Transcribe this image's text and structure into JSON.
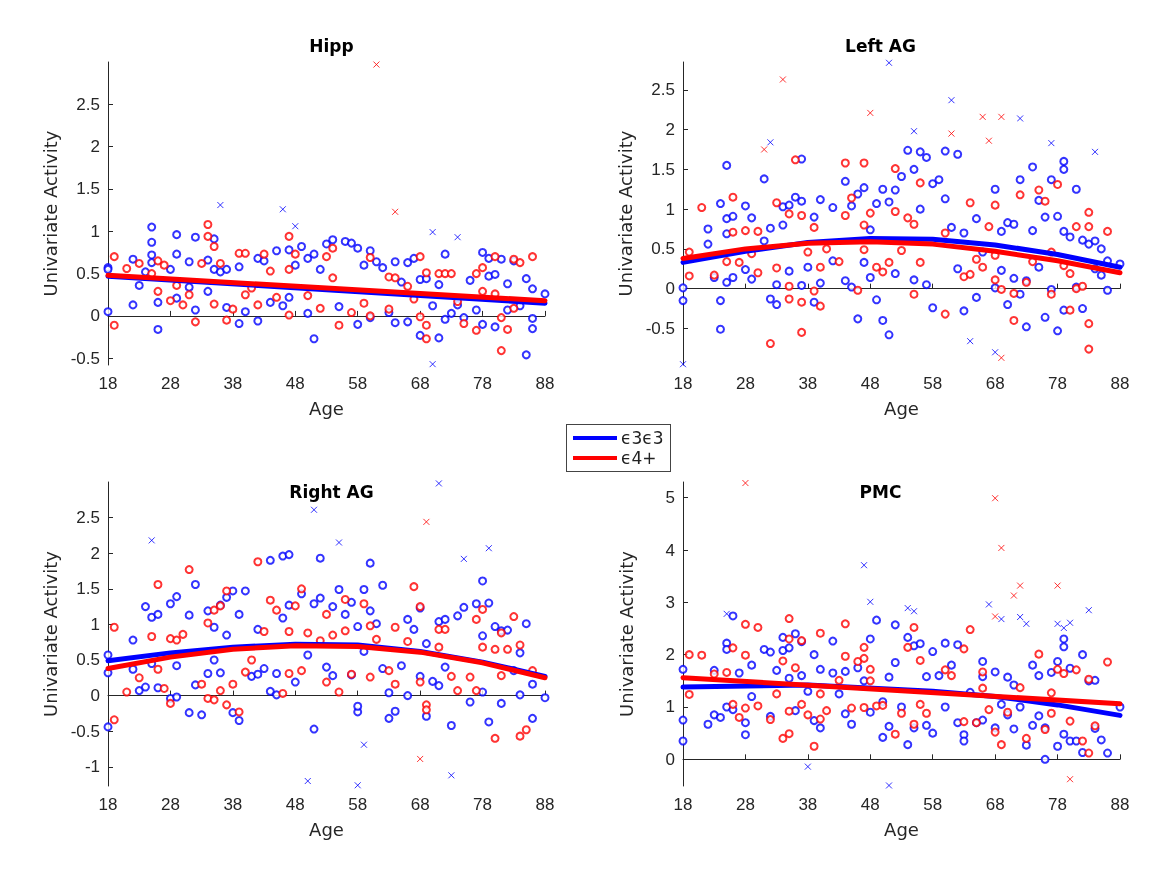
{
  "chart_data": [
    {
      "type": "scatter",
      "title": "Hipp",
      "xlabel": "Age",
      "ylabel": "Univariate Activity",
      "xlim": [
        18,
        88
      ],
      "xticks": [
        18,
        28,
        38,
        48,
        58,
        68,
        78,
        88
      ],
      "ylim": [
        -0.58,
        3.0
      ],
      "yticks": [
        -0.5,
        0,
        0.5,
        1,
        1.5,
        2,
        2.5
      ],
      "legend": "bottom right",
      "series": [
        {
          "type": "scatter",
          "marker": "circle",
          "color": "#0000ff",
          "x": [
            18,
            18,
            18,
            22,
            22,
            23,
            24,
            25,
            25,
            25,
            25,
            26,
            26,
            28,
            29,
            29,
            29,
            31,
            31,
            32,
            32,
            34,
            34,
            35,
            35,
            36,
            37,
            37,
            39,
            39,
            40,
            42,
            42,
            43,
            44,
            45,
            46,
            47,
            47,
            48,
            49,
            50,
            50,
            51,
            51,
            52,
            53,
            54,
            55,
            56,
            57,
            58,
            58,
            59,
            60,
            60,
            61,
            62,
            63,
            64,
            64,
            65,
            66,
            66,
            67,
            68,
            68,
            69,
            70,
            71,
            71,
            72,
            72,
            73,
            74,
            75,
            76,
            77,
            78,
            78,
            79,
            79,
            80,
            80,
            81,
            82,
            82,
            83,
            84,
            85,
            85,
            86,
            86,
            86,
            88
          ],
          "values": [
            0.57,
            0.55,
            0.05,
            0.67,
            0.13,
            0.36,
            0.52,
            1.05,
            0.87,
            0.72,
            0.63,
            -0.16,
            0.16,
            0.55,
            0.96,
            0.73,
            0.21,
            0.64,
            0.34,
            0.93,
            0.07,
            0.66,
            0.29,
            0.91,
            0.55,
            0.52,
            0.55,
            0.1,
            -0.09,
            0.58,
            0.05,
            0.68,
            -0.06,
            0.65,
            0.16,
            0.77,
            0.12,
            0.78,
            0.22,
            0.6,
            0.82,
            0.68,
            0.03,
            0.73,
            -0.27,
            0.55,
            0.85,
            0.9,
            0.11,
            0.88,
            0.86,
            0.8,
            -0.1,
            0.6,
            0.77,
            -0.02,
            0.64,
            0.57,
            0.04,
            0.64,
            -0.08,
            0.4,
            0.63,
            -0.07,
            0.68,
            -0.23,
            0.43,
            0.44,
            0.12,
            -0.26,
            0.37,
            0.73,
            -0.04,
            0.03,
            0.13,
            -0.02,
            0.42,
            0.07,
            0.75,
            -0.1,
            0.68,
            0.47,
            -0.13,
            0.49,
            0.67,
            0.38,
            0.07,
            0.65,
            0.12,
            0.44,
            -0.46,
            0.32,
            -0.15,
            -0.03,
            0.26
          ]
        },
        {
          "type": "scatter",
          "marker": "cross",
          "color": "#0000ff",
          "x": [
            36,
            46,
            48,
            70,
            74,
            70
          ],
          "values": [
            1.31,
            1.26,
            1.06,
            0.99,
            0.93,
            -0.57
          ]
        },
        {
          "type": "scatter",
          "marker": "circle",
          "color": "#ff0000",
          "x": [
            19,
            19,
            21,
            23,
            25,
            26,
            26,
            27,
            28,
            29,
            30,
            31,
            32,
            33,
            34,
            34,
            35,
            35,
            36,
            37,
            38,
            39,
            40,
            40,
            41,
            42,
            43,
            44,
            45,
            47,
            47,
            47,
            48,
            50,
            52,
            53,
            54,
            54,
            55,
            57,
            59,
            60,
            60,
            63,
            63,
            64,
            66,
            67,
            68,
            68,
            69,
            69,
            69,
            71,
            72,
            73,
            74,
            75,
            77,
            77,
            78,
            78,
            80,
            80,
            81,
            81,
            82,
            83,
            83,
            84,
            86
          ],
          "values": [
            0.7,
            -0.11,
            0.56,
            0.62,
            0.5,
            0.65,
            0.29,
            0.6,
            0.18,
            0.36,
            0.13,
            0.25,
            -0.07,
            0.62,
            1.08,
            0.94,
            0.82,
            0.14,
            0.62,
            -0.05,
            0.08,
            0.74,
            0.74,
            0.25,
            0.33,
            0.13,
            0.73,
            0.53,
            0.22,
            0.94,
            0.55,
            0.01,
            0.73,
            0.24,
            0.09,
            0.7,
            0.8,
            0.45,
            -0.11,
            0.04,
            0.15,
            0.69,
            0.0,
            0.46,
            0.08,
            0.45,
            0.35,
            0.2,
            0.7,
            -0.01,
            0.51,
            -0.27,
            -0.11,
            0.5,
            0.5,
            0.5,
            0.17,
            -0.09,
            0.5,
            -0.17,
            0.57,
            0.29,
            0.7,
            0.26,
            -0.41,
            -0.02,
            -0.16,
            0.67,
            0.09,
            0.63,
            0.7
          ]
        },
        {
          "type": "scatter",
          "marker": "cross",
          "color": "#ff0000",
          "x": [
            61,
            64
          ],
          "values": [
            2.97,
            1.23
          ]
        },
        {
          "type": "line",
          "name": "ϵ3ϵ3",
          "marker": "none",
          "line_style": "solid",
          "color": "#0000ff",
          "x": [
            18,
            53,
            88
          ],
          "values": [
            0.47,
            0.31,
            0.15
          ]
        },
        {
          "type": "line",
          "name": "ϵ4+",
          "marker": "none",
          "line_style": "solid",
          "color": "#ff0000",
          "x": [
            18,
            53,
            88
          ],
          "values": [
            0.48,
            0.33,
            0.18
          ]
        }
      ]
    },
    {
      "type": "scatter",
      "title": "Left AG",
      "xlabel": "Age",
      "ylabel": "Univariate Activity",
      "xlim": [
        18,
        88
      ],
      "xticks": [
        18,
        28,
        38,
        48,
        58,
        68,
        78,
        88
      ],
      "ylim": [
        -0.96,
        2.85
      ],
      "yticks": [
        -0.5,
        0,
        0.5,
        1,
        1.5,
        2,
        2.5
      ],
      "series": [
        {
          "type": "scatter",
          "marker": "circle",
          "color": "#0000ff",
          "x": [
            18,
            18,
            22,
            22,
            23,
            24,
            24,
            24,
            25,
            25,
            25,
            25,
            26,
            26,
            28,
            28,
            29,
            29,
            31,
            31,
            32,
            32,
            33,
            33,
            34,
            34,
            35,
            35,
            36,
            37,
            37,
            37,
            38,
            39,
            39,
            40,
            40,
            42,
            42,
            44,
            44,
            45,
            45,
            46,
            46,
            47,
            47,
            48,
            48,
            49,
            49,
            50,
            50,
            51,
            51,
            52,
            52,
            53,
            54,
            55,
            55,
            56,
            56,
            57,
            57,
            58,
            58,
            59,
            60,
            60,
            61,
            62,
            62,
            63,
            63,
            65,
            65,
            66,
            68,
            68,
            69,
            69,
            70,
            70,
            71,
            71,
            72,
            72,
            73,
            73,
            74,
            74,
            75,
            75,
            76,
            76,
            77,
            77,
            78,
            78,
            79,
            79,
            79,
            79,
            80,
            81,
            81,
            82,
            82,
            83,
            84,
            84,
            85,
            85,
            86,
            86,
            88
          ],
          "values": [
            0.01,
            -0.15,
            0.75,
            0.56,
            0.14,
            1.07,
            -0.15,
            -0.51,
            1.55,
            0.88,
            0.69,
            0.08,
            0.91,
            0.14,
            1.04,
            0.24,
            0.89,
            0.12,
            1.38,
            0.6,
            0.76,
            -0.13,
            0.05,
            -0.2,
            1.03,
            0.8,
            1.05,
            0.22,
            1.15,
            1.63,
            1.1,
            0.04,
            0.27,
            0.9,
            -0.17,
            1.12,
            0.07,
            1.02,
            0.35,
            1.35,
            0.1,
            1.04,
            0.02,
            1.19,
            -0.38,
            1.27,
            0.33,
            0.74,
            0.14,
            1.07,
            -0.14,
            1.25,
            -0.4,
            -0.58,
            1.09,
            1.24,
            0.19,
            1.41,
            1.74,
            1.5,
            0.11,
            1.72,
            1.0,
            1.65,
            0.05,
            1.32,
            -0.24,
            1.37,
            1.73,
            1.13,
            0.77,
            1.69,
            0.25,
            0.7,
            -0.28,
            0.88,
            -0.11,
            0.46,
            1.25,
            0.01,
            0.72,
            0.23,
            0.83,
            -0.2,
            0.81,
            0.13,
            1.37,
            -0.07,
            0.1,
            -0.48,
            1.53,
            0.73,
            1.11,
            0.27,
            0.9,
            -0.36,
            1.37,
            -0.01,
            0.91,
            -0.53,
            1.6,
            1.5,
            0.72,
            -0.27,
            0.65,
            1.25,
            0.02,
            0.61,
            -0.25,
            0.56,
            0.6,
            0.25,
            0.5,
            0.17,
            -0.02,
            0.35,
            0.31
          ]
        },
        {
          "type": "scatter",
          "marker": "cross",
          "color": "#0000ff",
          "x": [
            51,
            32,
            55,
            61,
            72,
            77,
            84,
            64,
            68,
            18
          ],
          "values": [
            2.84,
            1.84,
            1.98,
            2.37,
            2.14,
            1.83,
            1.72,
            -0.66,
            -0.8,
            -0.95
          ]
        },
        {
          "type": "scatter",
          "marker": "circle",
          "color": "#ff0000",
          "x": [
            19,
            19,
            21,
            23,
            25,
            26,
            26,
            27,
            28,
            29,
            30,
            30,
            32,
            33,
            33,
            35,
            35,
            35,
            36,
            37,
            37,
            37,
            38,
            39,
            39,
            40,
            40,
            41,
            43,
            44,
            44,
            45,
            46,
            47,
            47,
            47,
            48,
            49,
            50,
            51,
            52,
            52,
            53,
            54,
            55,
            55,
            56,
            56,
            60,
            60,
            63,
            64,
            64,
            65,
            66,
            67,
            68,
            68,
            68,
            69,
            71,
            71,
            72,
            73,
            74,
            75,
            76,
            77,
            77,
            78,
            79,
            80,
            80,
            81,
            81,
            82,
            83,
            83,
            83,
            83,
            86
          ],
          "values": [
            0.46,
            0.16,
            1.02,
            0.17,
            0.34,
            1.15,
            0.71,
            0.33,
            0.73,
            0.44,
            0.72,
            0.2,
            -0.69,
            1.08,
            0.26,
            0.94,
            0.03,
            -0.13,
            1.62,
            0.92,
            -0.55,
            -0.17,
            0.46,
            0.77,
            -0.03,
            0.27,
            -0.22,
            0.5,
            0.34,
            1.58,
            0.92,
            1.14,
            -0.02,
            1.58,
            0.49,
            0.8,
            0.95,
            0.27,
            0.21,
            0.33,
            1.51,
            0.97,
            0.48,
            0.89,
            0.81,
            -0.07,
            1.33,
            0.33,
            0.7,
            -0.32,
            0.15,
            1.08,
            0.18,
            0.37,
            0.27,
            0.78,
            1.05,
            0.42,
            0.11,
            -0.01,
            -0.06,
            -0.4,
            1.18,
            0.08,
            0.34,
            1.24,
            1.1,
            0.46,
            -0.07,
            1.31,
            0.29,
            0.19,
            -0.27,
            0.78,
            0.0,
            0.03,
            0.96,
            0.78,
            -0.44,
            -0.76,
            0.72
          ]
        },
        {
          "type": "scatter",
          "marker": "cross",
          "color": "#ff0000",
          "x": [
            34,
            31,
            48,
            61,
            66,
            69,
            67,
            69
          ],
          "values": [
            2.63,
            1.75,
            2.21,
            1.95,
            2.16,
            2.16,
            1.86,
            -0.87
          ]
        },
        {
          "type": "line",
          "marker": "none",
          "line_style": "solid",
          "color": "#0000ff",
          "x": [
            18,
            28,
            38,
            48,
            58,
            68,
            78,
            88
          ],
          "values": [
            0.33,
            0.47,
            0.58,
            0.63,
            0.62,
            0.55,
            0.43,
            0.27
          ]
        },
        {
          "type": "line",
          "marker": "none",
          "line_style": "solid",
          "color": "#ff0000",
          "x": [
            18,
            28,
            38,
            48,
            58,
            68,
            78,
            88
          ],
          "values": [
            0.38,
            0.5,
            0.57,
            0.59,
            0.56,
            0.47,
            0.35,
            0.2
          ]
        }
      ]
    },
    {
      "type": "scatter",
      "title": "Right AG",
      "xlabel": "Age",
      "ylabel": "Univariate Activity",
      "xlim": [
        18,
        88
      ],
      "xticks": [
        18,
        28,
        38,
        48,
        58,
        68,
        78,
        88
      ],
      "ylim": [
        -1.27,
        3.0
      ],
      "yticks": [
        -1,
        -0.5,
        0,
        0.5,
        1,
        1.5,
        2,
        2.5
      ],
      "series": [
        {
          "type": "scatter",
          "marker": "circle",
          "color": "#0000ff",
          "x": [
            18,
            18,
            18,
            22,
            22,
            23,
            24,
            24,
            25,
            25,
            26,
            26,
            28,
            28,
            29,
            29,
            29,
            31,
            31,
            32,
            32,
            33,
            34,
            34,
            35,
            35,
            36,
            36,
            37,
            37,
            38,
            38,
            39,
            39,
            40,
            41,
            42,
            42,
            43,
            44,
            44,
            45,
            45,
            46,
            46,
            47,
            47,
            48,
            49,
            50,
            51,
            51,
            52,
            52,
            53,
            54,
            54,
            55,
            56,
            57,
            57,
            58,
            58,
            58,
            59,
            59,
            60,
            60,
            61,
            62,
            62,
            63,
            63,
            64,
            65,
            66,
            66,
            67,
            68,
            68,
            69,
            69,
            70,
            71,
            71,
            72,
            72,
            73,
            74,
            75,
            76,
            77,
            78,
            78,
            78,
            79,
            79,
            80,
            81,
            81,
            82,
            83,
            84,
            84,
            85,
            86,
            86,
            88
          ],
          "values": [
            0.57,
            0.32,
            -0.44,
            0.78,
            0.37,
            0.07,
            1.25,
            0.12,
            1.1,
            0.45,
            1.14,
            0.11,
            1.29,
            -0.04,
            1.39,
            0.42,
            -0.02,
            1.13,
            -0.24,
            1.56,
            0.15,
            -0.27,
            1.19,
            0.31,
            0.96,
            0.5,
            1.27,
            0.32,
            1.38,
            0.85,
            1.47,
            -0.24,
            1.14,
            -0.35,
            1.47,
            0.27,
            0.93,
            0.3,
            0.38,
            1.9,
            0.06,
            0.31,
            0.01,
            1.96,
            1.09,
            1.98,
            1.27,
            0.19,
            1.43,
            0.57,
            1.29,
            -0.47,
            1.93,
            1.37,
            0.4,
            1.25,
            0.28,
            1.49,
            1.14,
            1.31,
            0.29,
            0.97,
            -0.23,
            -0.15,
            1.49,
            0.62,
            1.86,
            1.19,
            1.01,
            1.55,
            0.38,
            0.04,
            -0.32,
            -0.22,
            0.42,
            1.07,
            0.0,
            0.93,
            1.23,
            0.27,
            0.73,
            -0.29,
            0.2,
            1.04,
            0.14,
            1.07,
            0.4,
            -0.42,
            1.12,
            1.24,
            -0.09,
            1.29,
            1.61,
            0.84,
            0.05,
            1.3,
            -0.37,
            0.97,
            0.91,
            -0.11,
            0.92,
            0.35,
            0.6,
            0.01,
            1.01,
            0.16,
            -0.32,
            -0.03
          ]
        },
        {
          "type": "scatter",
          "marker": "cross",
          "color": "#0000ff",
          "x": [
            25,
            51,
            55,
            71,
            75,
            79,
            59,
            50,
            58,
            73
          ],
          "values": [
            2.18,
            2.61,
            2.15,
            2.98,
            1.92,
            2.07,
            -0.69,
            -1.2,
            -1.26,
            -1.12
          ]
        },
        {
          "type": "scatter",
          "marker": "circle",
          "color": "#ff0000",
          "x": [
            19,
            19,
            21,
            23,
            25,
            26,
            26,
            27,
            28,
            28,
            29,
            30,
            31,
            33,
            34,
            34,
            35,
            35,
            36,
            36,
            37,
            37,
            38,
            39,
            40,
            41,
            42,
            43,
            44,
            45,
            46,
            47,
            47,
            48,
            49,
            49,
            50,
            52,
            53,
            53,
            54,
            55,
            56,
            56,
            57,
            59,
            60,
            60,
            61,
            63,
            64,
            64,
            66,
            67,
            68,
            68,
            69,
            69,
            71,
            71,
            72,
            73,
            74,
            76,
            77,
            77,
            78,
            78,
            80,
            80,
            81,
            81,
            82,
            83,
            84,
            84,
            85,
            86
          ],
          "values": [
            0.96,
            -0.34,
            0.05,
            0.25,
            0.83,
            1.56,
            0.37,
            0.1,
            0.8,
            -0.11,
            0.78,
            0.86,
            1.77,
            0.16,
            1.02,
            -0.04,
            1.2,
            -0.06,
            1.26,
            0.07,
            1.47,
            -0.13,
            0.16,
            -0.23,
            0.33,
            0.5,
            1.88,
            0.9,
            1.34,
            1.2,
            0.03,
            0.9,
            0.31,
            1.26,
            1.5,
            0.35,
            0.88,
            0.77,
            1.14,
            0.19,
            0.85,
            0.05,
            1.35,
            0.91,
            0.3,
            1.29,
            0.98,
            0.26,
            0.79,
            0.35,
            0.96,
            0.16,
            0.76,
            1.53,
            1.25,
            0.19,
            -0.13,
            -0.2,
            0.93,
            0.68,
            0.93,
            0.27,
            0.07,
            0.26,
            1.07,
            0.07,
            1.21,
            0.68,
            0.65,
            -0.6,
            0.88,
            0.28,
            0.65,
            1.11,
            0.71,
            -0.57,
            -0.48,
            0.35
          ]
        },
        {
          "type": "scatter",
          "marker": "cross",
          "color": "#ff0000",
          "x": [
            69,
            68
          ],
          "values": [
            2.44,
            -0.89
          ]
        },
        {
          "type": "line",
          "marker": "none",
          "line_style": "solid",
          "color": "#0000ff",
          "x": [
            18,
            28,
            38,
            48,
            58,
            68,
            78,
            88
          ],
          "values": [
            0.49,
            0.6,
            0.68,
            0.72,
            0.71,
            0.62,
            0.47,
            0.27
          ]
        },
        {
          "type": "line",
          "marker": "none",
          "line_style": "solid",
          "color": "#ff0000",
          "x": [
            18,
            28,
            38,
            48,
            58,
            68,
            78,
            88
          ],
          "values": [
            0.38,
            0.54,
            0.65,
            0.7,
            0.69,
            0.61,
            0.46,
            0.25
          ]
        }
      ]
    },
    {
      "type": "scatter",
      "title": "PMC",
      "xlabel": "Age",
      "ylabel": "Univariate Activity",
      "xlim": [
        18,
        88
      ],
      "xticks": [
        18,
        28,
        38,
        48,
        58,
        68,
        78,
        88
      ],
      "ylim": [
        -0.51,
        5.3
      ],
      "yticks": [
        0,
        1,
        2,
        3,
        4,
        5
      ],
      "series": [
        {
          "type": "scatter",
          "marker": "circle",
          "color": "#0000ff",
          "x": [
            18,
            18,
            18,
            22,
            23,
            23,
            24,
            25,
            25,
            25,
            26,
            26,
            27,
            28,
            28,
            29,
            29,
            31,
            32,
            32,
            33,
            34,
            34,
            35,
            35,
            36,
            36,
            37,
            37,
            38,
            39,
            39,
            40,
            40,
            42,
            42,
            43,
            44,
            44,
            45,
            46,
            47,
            48,
            48,
            49,
            50,
            50,
            51,
            51,
            52,
            52,
            53,
            54,
            54,
            55,
            55,
            56,
            57,
            57,
            58,
            58,
            59,
            60,
            60,
            61,
            62,
            62,
            63,
            63,
            64,
            65,
            66,
            66,
            66,
            68,
            68,
            69,
            70,
            70,
            71,
            71,
            72,
            73,
            74,
            74,
            75,
            75,
            76,
            76,
            77,
            78,
            78,
            79,
            79,
            79,
            80,
            80,
            81,
            82,
            82,
            83,
            84,
            84,
            85,
            86,
            88
          ],
          "values": [
            1.72,
            0.75,
            0.35,
            0.67,
            1.7,
            0.85,
            0.8,
            2.22,
            2.1,
            1.0,
            2.74,
            0.95,
            1.65,
            0.47,
            0.7,
            1.8,
            1.2,
            2.1,
            2.05,
            0.82,
            1.7,
            2.33,
            2.08,
            2.13,
            1.55,
            2.4,
            0.93,
            2.25,
            1.6,
            1.3,
            2.0,
            0.74,
            1.72,
            0.6,
            2.26,
            1.65,
            1.25,
            1.68,
            0.87,
            0.67,
            1.75,
            1.5,
            2.3,
            0.9,
            2.66,
            1.1,
            0.42,
            1.57,
            0.63,
            2.57,
            1.85,
            1.0,
            2.33,
            0.28,
            2.17,
            0.6,
            2.21,
            1.58,
            0.65,
            2.06,
            0.5,
            1.6,
            2.22,
            1.0,
            1.8,
            2.19,
            0.7,
            0.47,
            0.35,
            1.28,
            0.7,
            1.87,
            1.58,
            0.75,
            1.67,
            0.6,
            1.05,
            1.57,
            0.85,
            1.42,
            0.58,
            1.0,
            0.27,
            1.8,
            0.65,
            1.6,
            0.83,
            0.0,
            0.6,
            1.66,
            1.87,
            0.25,
            2.3,
            2.15,
            0.48,
            1.74,
            0.35,
            0.35,
            2.0,
            0.13,
            1.5,
            1.51,
            0.59,
            0.37,
            0.12,
            1.0
          ]
        },
        {
          "type": "scatter",
          "marker": "cross",
          "color": "#0000ff",
          "x": [
            25,
            47,
            48,
            54,
            55,
            67,
            69,
            72,
            73,
            78,
            79,
            80,
            83,
            38,
            51
          ],
          "values": [
            2.78,
            3.71,
            3.01,
            2.89,
            2.83,
            2.96,
            2.68,
            2.72,
            2.59,
            2.59,
            2.51,
            2.61,
            2.85,
            -0.14,
            -0.5
          ]
        },
        {
          "type": "scatter",
          "marker": "circle",
          "color": "#ff0000",
          "x": [
            19,
            19,
            21,
            23,
            25,
            26,
            26,
            27,
            28,
            28,
            28,
            30,
            30,
            32,
            33,
            34,
            34,
            35,
            35,
            35,
            35,
            36,
            37,
            37,
            38,
            39,
            40,
            40,
            40,
            41,
            43,
            44,
            44,
            45,
            46,
            47,
            47,
            47,
            48,
            48,
            49,
            50,
            52,
            53,
            54,
            55,
            55,
            56,
            56,
            57,
            60,
            61,
            63,
            63,
            64,
            65,
            66,
            66,
            67,
            68,
            69,
            70,
            72,
            73,
            75,
            76,
            77,
            77,
            78,
            79,
            80,
            81,
            82,
            83,
            83,
            84,
            86
          ],
          "values": [
            2.0,
            1.24,
            1.99,
            1.63,
            1.66,
            2.13,
            1.05,
            0.8,
            2.58,
            1.99,
            0.98,
            2.52,
            1.02,
            0.76,
            1.25,
            1.88,
            0.4,
            2.69,
            2.3,
            0.92,
            0.49,
            1.75,
            2.27,
            1.05,
            0.85,
            0.25,
            2.41,
            0.77,
            1.25,
            0.93,
            1.51,
            2.59,
            1.97,
            0.98,
            1.87,
            2.14,
            1.93,
            0.99,
            1.72,
            1.5,
            1.02,
            1.03,
            0.48,
            0.88,
            2.14,
            2.52,
            0.67,
            1.89,
            1.05,
            0.88,
            1.71,
            1.6,
            2.11,
            0.72,
            2.48,
            0.7,
            1.67,
            1.36,
            0.95,
            0.52,
            0.28,
            0.9,
            1.37,
            0.4,
            2.01,
            0.57,
            1.27,
            0.88,
            1.72,
            1.64,
            0.73,
            1.71,
            0.35,
            1.53,
            0.12,
            0.64,
            1.86
          ]
        },
        {
          "type": "scatter",
          "marker": "cross",
          "color": "#ff0000",
          "x": [
            28,
            68,
            69,
            68,
            71,
            72,
            78,
            80
          ],
          "values": [
            5.28,
            4.99,
            4.04,
            2.73,
            3.13,
            3.32,
            3.32,
            -0.38
          ]
        },
        {
          "type": "line",
          "marker": "none",
          "line_style": "solid",
          "color": "#0000ff",
          "x": [
            18,
            38,
            58,
            68,
            78,
            88
          ],
          "values": [
            1.38,
            1.42,
            1.3,
            1.2,
            1.04,
            0.84
          ]
        },
        {
          "type": "line",
          "marker": "none",
          "line_style": "solid",
          "color": "#ff0000",
          "x": [
            18,
            53,
            88
          ],
          "values": [
            1.56,
            1.31,
            1.06
          ]
        }
      ]
    }
  ]
}
